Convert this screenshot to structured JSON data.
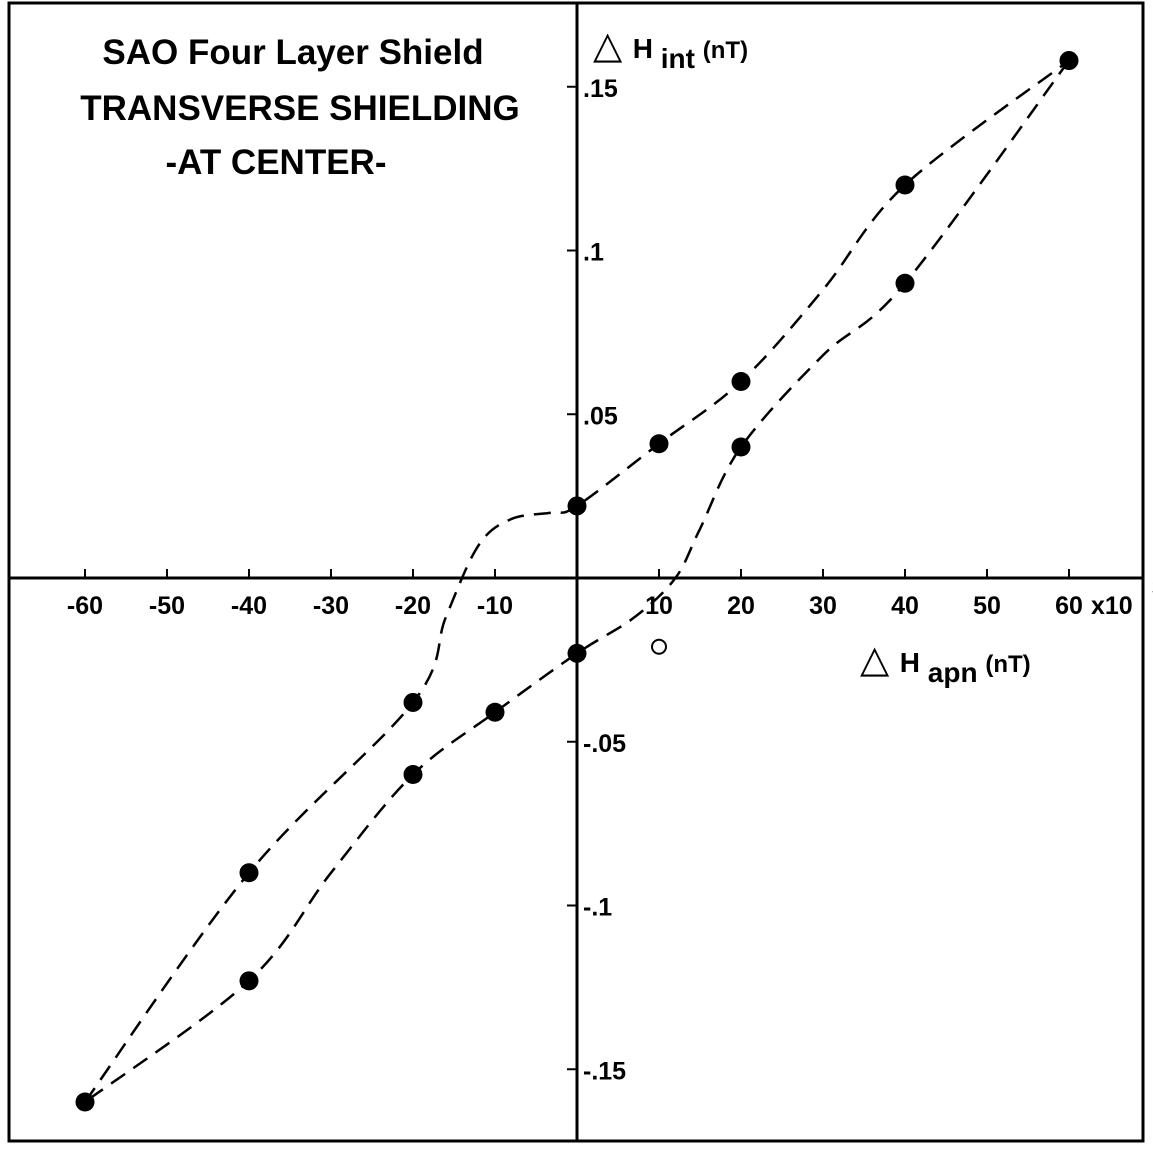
{
  "chart_data": {
    "type": "scatter",
    "title": [
      "SAO Four Layer Shield",
      "TRANSVERSE SHIELDING",
      "-AT CENTER-"
    ],
    "xlabel": {
      "symbol": "△",
      "main": "H",
      "sub": "apn",
      "unit": "(nT)"
    },
    "ylabel": {
      "symbol": "△",
      "main": "H",
      "sub": "int",
      "unit": "(nT)"
    },
    "xlim": [
      -60,
      60
    ],
    "ylim": [
      -0.165,
      0.165
    ],
    "x_unit_multiplier": "x10",
    "x_unit_exponent": "3",
    "x_ticks": [
      -60,
      -50,
      -40,
      -30,
      -20,
      -10,
      10,
      20,
      30,
      40,
      50,
      60
    ],
    "x_tick_labels": [
      "-60",
      "-50",
      "-40",
      "-30",
      "-20",
      "-10",
      "10",
      "20",
      "30",
      "40",
      "50",
      "60"
    ],
    "y_ticks": [
      0.15,
      0.1,
      0.05,
      -0.05,
      -0.1,
      -0.15
    ],
    "y_tick_labels": [
      ".15",
      ".1",
      ".05",
      "-.05",
      "-.1",
      "-.15"
    ],
    "grid": false,
    "series": [
      {
        "marker": "filled-circle",
        "points": [
          [
            -60,
            -0.16
          ],
          [
            -40,
            -0.09
          ],
          [
            -40,
            -0.123
          ],
          [
            -20,
            -0.038
          ],
          [
            -20,
            -0.06
          ],
          [
            -10,
            -0.041
          ],
          [
            0,
            -0.023
          ],
          [
            0,
            0.022
          ],
          [
            10,
            0.041
          ],
          [
            20,
            0.06
          ],
          [
            20,
            0.04
          ],
          [
            40,
            0.12
          ],
          [
            40,
            0.09
          ],
          [
            60,
            0.158
          ]
        ]
      },
      {
        "marker": "open-circle",
        "points": [
          [
            10,
            -0.021
          ]
        ]
      }
    ],
    "curves": [
      {
        "style": "dashed",
        "points": [
          [
            -60,
            -0.16
          ],
          [
            -40,
            -0.09
          ],
          [
            -20,
            -0.038
          ],
          [
            -16,
            -0.012
          ],
          [
            -12,
            0.01
          ],
          [
            -8,
            0.018
          ],
          [
            -3,
            0.02
          ],
          [
            0,
            0.022
          ],
          [
            10,
            0.041
          ],
          [
            20,
            0.06
          ],
          [
            30,
            0.088
          ],
          [
            40,
            0.12
          ],
          [
            60,
            0.158
          ]
        ]
      },
      {
        "style": "dashed",
        "points": [
          [
            60,
            0.158
          ],
          [
            40,
            0.09
          ],
          [
            30,
            0.068
          ],
          [
            20,
            0.04
          ],
          [
            15,
            0.015
          ],
          [
            12,
            0.0
          ],
          [
            7,
            -0.012
          ],
          [
            0,
            -0.023
          ],
          [
            -10,
            -0.041
          ],
          [
            -20,
            -0.06
          ],
          [
            -30,
            -0.09
          ],
          [
            -40,
            -0.123
          ],
          [
            -60,
            -0.16
          ]
        ]
      }
    ]
  }
}
